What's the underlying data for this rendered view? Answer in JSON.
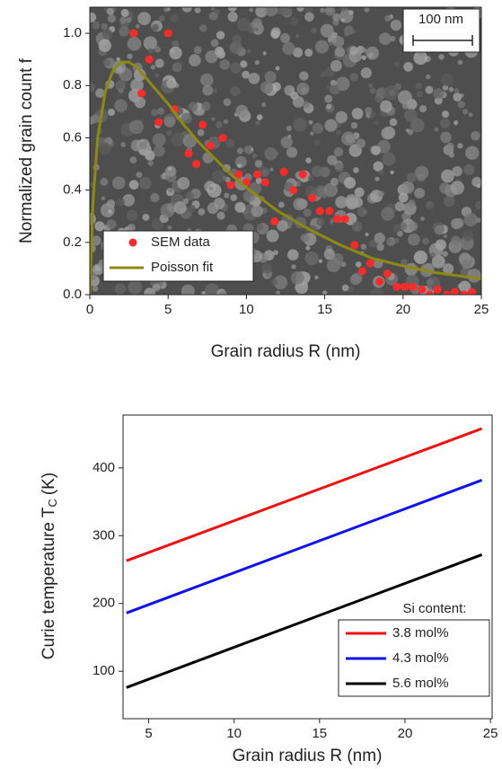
{
  "chart_data": [
    {
      "type": "scatter",
      "x_label": "Grain radius R (nm)",
      "y_label": "Normalized grain count f",
      "xlim": [
        0,
        25
      ],
      "ylim": [
        0,
        1.1
      ],
      "xticks": [
        0,
        5,
        10,
        15,
        20,
        25
      ],
      "yticks": [
        {
          "value": 0,
          "label": "0.0"
        },
        0.2,
        0.4,
        0.6,
        0.8,
        {
          "value": 1,
          "label": "1.0"
        }
      ],
      "annotations": [
        "100 nm"
      ],
      "legend": "lower left",
      "series": [
        {
          "name": "SEM data",
          "type": "scatter",
          "color": "#ff2a2a",
          "x": [
            2.8,
            5.0,
            3.8,
            3.3,
            5.4,
            4.4,
            7.2,
            6.3,
            6.8,
            7.7,
            8.5,
            9.0,
            9.5,
            10.0,
            10.7,
            11.2,
            11.8,
            12.4,
            13.0,
            13.6,
            14.2,
            14.7,
            15.3,
            15.8,
            16.3,
            16.9,
            17.4,
            17.9,
            18.5,
            19.0,
            19.6,
            20.1,
            20.6,
            21.2,
            21.7,
            22.2,
            22.8,
            23.3,
            23.9,
            24.4
          ],
          "values": [
            1.0,
            1.0,
            0.9,
            0.77,
            0.71,
            0.66,
            0.65,
            0.54,
            0.5,
            0.57,
            0.6,
            0.42,
            0.46,
            0.43,
            0.46,
            0.43,
            0.28,
            0.47,
            0.4,
            0.46,
            0.37,
            0.32,
            0.32,
            0.29,
            0.29,
            0.19,
            0.09,
            0.12,
            0.05,
            0.08,
            0.03,
            0.03,
            0.03,
            0.02,
            0.0,
            0.02,
            0.0,
            0.01,
            0.0,
            0.01
          ]
        },
        {
          "name": "Poisson fit",
          "type": "line",
          "color": "#8c8a10",
          "x": [
            0,
            0.2,
            0.5,
            1,
            1.5,
            2,
            2.5,
            3,
            4,
            5,
            6,
            7,
            8,
            9,
            10,
            12,
            14,
            16,
            18,
            20,
            22,
            25
          ],
          "values": [
            0,
            0.35,
            0.6,
            0.78,
            0.86,
            0.89,
            0.89,
            0.87,
            0.8,
            0.73,
            0.65,
            0.58,
            0.52,
            0.46,
            0.41,
            0.32,
            0.25,
            0.19,
            0.14,
            0.11,
            0.085,
            0.06
          ]
        }
      ]
    },
    {
      "type": "line",
      "x_label": "Grain radius R (nm)",
      "y_label": "Curie temperature T",
      "y_label_subscript": "C",
      "y_label_unit": "(K)",
      "xlim": [
        3.5,
        25.1
      ],
      "ylim": [
        30,
        478
      ],
      "xticks": [
        5,
        10,
        15,
        20,
        25
      ],
      "yticks": [
        100,
        200,
        300,
        400
      ],
      "legend": "lower right",
      "legend_title": "Si content:",
      "series": [
        {
          "name": "3.8 mol%",
          "type": "line",
          "color": "#ee1111",
          "x": [
            3.7,
            24.5
          ],
          "values": [
            263,
            458
          ]
        },
        {
          "name": "4.3 mol%",
          "type": "line",
          "color": "#1111ee",
          "x": [
            3.7,
            24.5
          ],
          "values": [
            186,
            382
          ]
        },
        {
          "name": "5.6 mol%",
          "type": "line",
          "color": "#000000",
          "x": [
            3.7,
            24.5
          ],
          "values": [
            76,
            272
          ]
        }
      ]
    }
  ]
}
